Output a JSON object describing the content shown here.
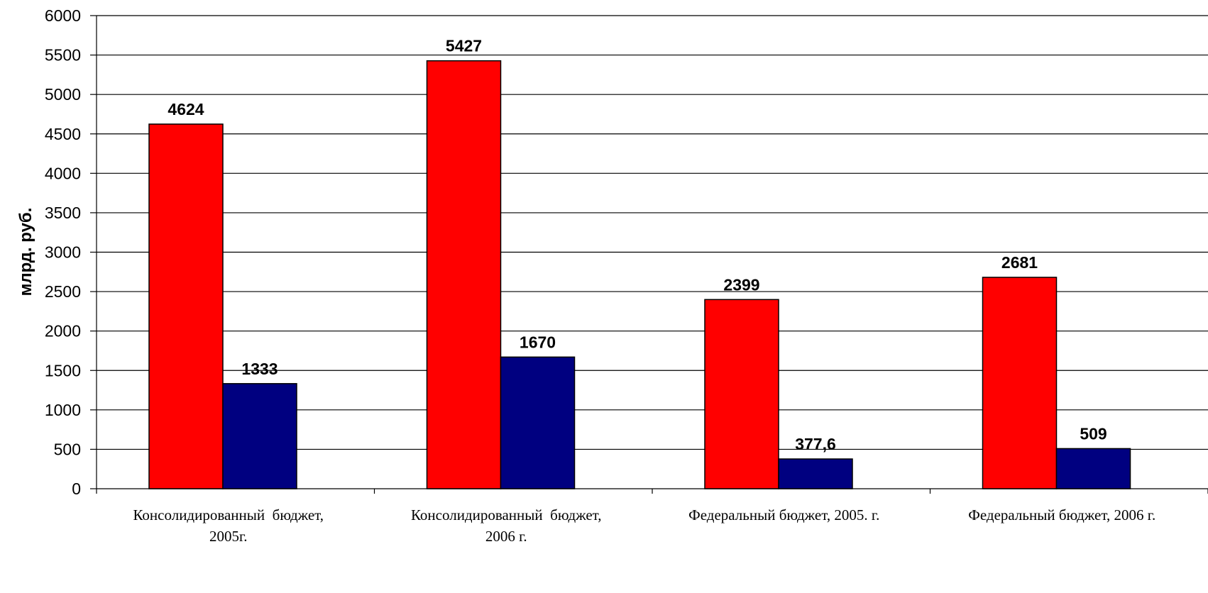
{
  "chart_data": {
    "type": "bar",
    "title": "",
    "xlabel": "",
    "ylabel": "млрд. руб.",
    "ylim": [
      0,
      6000
    ],
    "yticks": [
      0,
      500,
      1000,
      1500,
      2000,
      2500,
      3000,
      3500,
      4000,
      4500,
      5000,
      5500,
      6000
    ],
    "grid": true,
    "legend": "none",
    "categories": [
      [
        "Консолидированный  бюджет,",
        "2005г."
      ],
      [
        "Консолидированный  бюджет,",
        "2006 г."
      ],
      [
        "Федеральный бюджет, 2005. г."
      ],
      [
        "Федеральный бюджет, 2006 г."
      ]
    ],
    "series": [
      {
        "color": "#ff0000",
        "values": [
          4624,
          5427,
          2399,
          2681
        ],
        "labels": [
          "4624",
          "5427",
          "2399",
          "2681"
        ]
      },
      {
        "color": "#000080",
        "values": [
          1333,
          1670,
          377.6,
          509
        ],
        "labels": [
          "1333",
          "1670",
          "377,6",
          "509"
        ]
      }
    ]
  }
}
